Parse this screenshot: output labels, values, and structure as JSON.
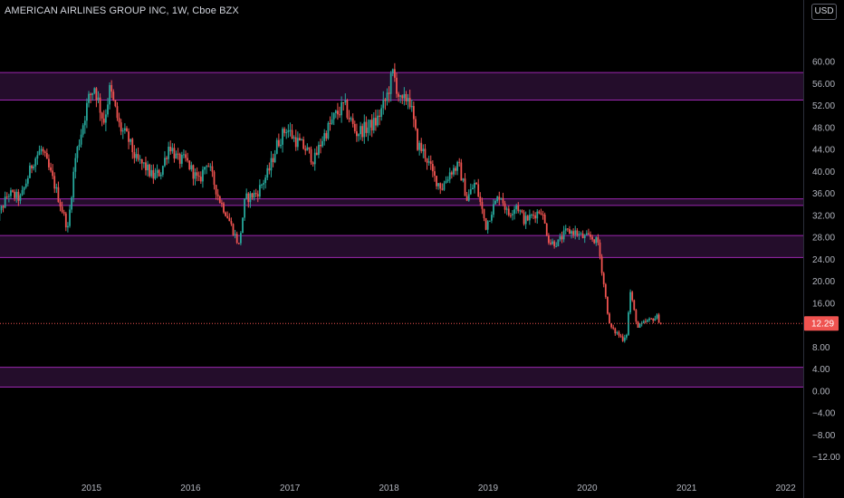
{
  "header": {
    "title": "AMERICAN AIRLINES GROUP INC, 1W, Cboe BZX",
    "currency": "USD"
  },
  "colors": {
    "background": "#000000",
    "up": "#26a69a",
    "down": "#ef5350",
    "zone_fill": "#2a0f33",
    "zone_border": "#9c27b0",
    "last_price_line": "#ef5350",
    "axis_text": "#b2b5be"
  },
  "chart_data": {
    "type": "candlestick",
    "title": "AMERICAN AIRLINES GROUP INC, 1W, Cboe BZX",
    "y_axis": {
      "position": "right",
      "ylim": [
        -14,
        62
      ],
      "ticks": [
        "60.00",
        "56.00",
        "52.00",
        "48.00",
        "44.00",
        "40.00",
        "36.00",
        "32.00",
        "28.00",
        "24.00",
        "20.00",
        "16.00",
        "12.00",
        "8.00",
        "4.00",
        "0.00",
        "−4.00",
        "−8.00",
        "−12.00"
      ]
    },
    "x_axis": {
      "ticks": [
        "2015",
        "2016",
        "2017",
        "2018",
        "2019",
        "2020",
        "2021",
        "2022"
      ]
    },
    "last_price": {
      "value": 12.29,
      "label": "12.29"
    },
    "zones": [
      {
        "low": 53.0,
        "high": 58.0
      },
      {
        "low": 33.8,
        "high": 35.0
      },
      {
        "low": 24.3,
        "high": 28.3
      },
      {
        "low": 0.7,
        "high": 4.3
      }
    ],
    "anchors": [
      [
        "2014-01-06",
        30.0
      ],
      [
        "2014-03-01",
        36.0
      ],
      [
        "2014-04-15",
        35.0
      ],
      [
        "2014-06-01",
        42.0
      ],
      [
        "2014-07-01",
        44.0
      ],
      [
        "2014-08-15",
        38.0
      ],
      [
        "2014-10-06",
        29.5
      ],
      [
        "2014-11-01",
        42.0
      ],
      [
        "2014-12-20",
        53.0
      ],
      [
        "2015-01-12",
        55.5
      ],
      [
        "2015-02-15",
        49.0
      ],
      [
        "2015-03-10",
        55.0
      ],
      [
        "2015-04-15",
        48.0
      ],
      [
        "2015-05-15",
        46.0
      ],
      [
        "2015-06-15",
        42.0
      ],
      [
        "2015-07-15",
        41.0
      ],
      [
        "2015-08-15",
        39.0
      ],
      [
        "2015-09-15",
        40.0
      ],
      [
        "2015-10-15",
        45.0
      ],
      [
        "2015-11-15",
        42.0
      ],
      [
        "2015-12-15",
        42.0
      ],
      [
        "2016-02-01",
        38.0
      ],
      [
        "2016-03-01",
        42.0
      ],
      [
        "2016-04-15",
        35.0
      ],
      [
        "2016-05-15",
        32.0
      ],
      [
        "2016-06-27",
        26.5
      ],
      [
        "2016-07-20",
        35.0
      ],
      [
        "2016-09-01",
        36.0
      ],
      [
        "2016-10-15",
        40.0
      ],
      [
        "2016-11-15",
        45.0
      ],
      [
        "2016-12-20",
        48.0
      ],
      [
        "2017-01-15",
        46.0
      ],
      [
        "2017-03-01",
        44.0
      ],
      [
        "2017-04-01",
        42.0
      ],
      [
        "2017-05-01",
        46.0
      ],
      [
        "2017-06-15",
        50.0
      ],
      [
        "2017-07-20",
        52.0
      ],
      [
        "2017-09-01",
        47.0
      ],
      [
        "2017-10-15",
        48.0
      ],
      [
        "2017-11-15",
        49.0
      ],
      [
        "2017-12-20",
        53.0
      ],
      [
        "2018-01-16",
        58.0
      ],
      [
        "2018-02-15",
        52.0
      ],
      [
        "2018-03-15",
        54.0
      ],
      [
        "2018-04-15",
        45.0
      ],
      [
        "2018-05-15",
        43.0
      ],
      [
        "2018-06-15",
        39.0
      ],
      [
        "2018-07-15",
        37.0
      ],
      [
        "2018-08-15",
        40.0
      ],
      [
        "2018-09-15",
        41.0
      ],
      [
        "2018-10-15",
        35.0
      ],
      [
        "2018-11-15",
        38.0
      ],
      [
        "2018-12-24",
        30.0
      ],
      [
        "2019-01-15",
        33.0
      ],
      [
        "2019-02-15",
        36.0
      ],
      [
        "2019-03-15",
        32.0
      ],
      [
        "2019-04-15",
        34.0
      ],
      [
        "2019-05-15",
        31.0
      ],
      [
        "2019-06-15",
        32.0
      ],
      [
        "2019-07-15",
        33.0
      ],
      [
        "2019-08-15",
        27.0
      ],
      [
        "2019-09-15",
        27.0
      ],
      [
        "2019-10-15",
        29.0
      ],
      [
        "2019-11-15",
        29.0
      ],
      [
        "2019-12-15",
        28.0
      ],
      [
        "2020-01-15",
        28.0
      ],
      [
        "2020-02-10",
        27.0
      ],
      [
        "2020-02-24",
        22.0
      ],
      [
        "2020-03-09",
        17.0
      ],
      [
        "2020-03-23",
        12.0
      ],
      [
        "2020-04-06",
        11.0
      ],
      [
        "2020-04-20",
        10.5
      ],
      [
        "2020-05-11",
        9.5
      ],
      [
        "2020-05-25",
        10.5
      ],
      [
        "2020-06-08",
        18.0
      ],
      [
        "2020-06-22",
        14.5
      ],
      [
        "2020-07-06",
        11.5
      ],
      [
        "2020-08-01",
        12.5
      ],
      [
        "2020-08-24",
        13.0
      ],
      [
        "2020-09-14",
        13.5
      ],
      [
        "2020-09-28",
        12.3
      ]
    ]
  }
}
